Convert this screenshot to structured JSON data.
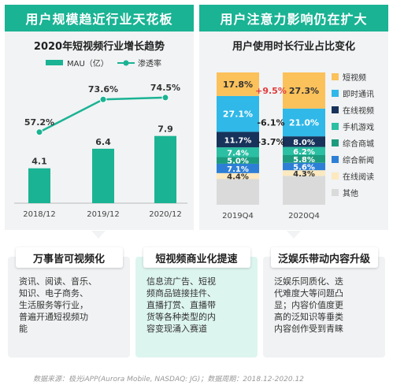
{
  "left_panel": {
    "banner": "用户规模趋近行业天花板"
  },
  "right_panel": {
    "banner": "用户注意力影响仍在扩大"
  },
  "chart_data": [
    {
      "type": "bar",
      "title": "2020年短视频行业增长趋势",
      "legend": [
        "MAU（亿）",
        "渗透率"
      ],
      "categories": [
        "2018/12",
        "2019/12",
        "2020/12"
      ],
      "series": [
        {
          "name": "MAU（亿）",
          "type": "bar",
          "values": [
            4.1,
            6.4,
            7.9
          ],
          "labels": [
            "4.1",
            "6.4",
            "7.9"
          ],
          "color": "#1ab394"
        },
        {
          "name": "渗透率",
          "type": "line",
          "values": [
            57.2,
            73.6,
            74.5
          ],
          "labels": [
            "57.2%",
            "73.6%",
            "74.5%"
          ],
          "color": "#1ab394"
        }
      ]
    },
    {
      "type": "bar",
      "stacked": true,
      "percent": true,
      "title": "用户使用时长行业占比变化",
      "categories": [
        "2019Q4",
        "2020Q4"
      ],
      "series": [
        {
          "name": "其他",
          "values": [
            null,
            null
          ],
          "labels": [
            "",
            ""
          ],
          "color": "#dadada"
        },
        {
          "name": "在线阅读",
          "values": [
            4.4,
            4.3
          ],
          "labels": [
            "4.4%",
            "4.3%"
          ],
          "color": "#fde9bf"
        },
        {
          "name": "综合新闻",
          "values": [
            7.1,
            5.6
          ],
          "labels": [
            "7.1%",
            "5.6%"
          ],
          "color": "#2d7fd6"
        },
        {
          "name": "综合商城",
          "values": [
            5.0,
            5.8
          ],
          "labels": [
            "5.0%",
            "5.8%"
          ],
          "color": "#1d9b7e"
        },
        {
          "name": "手机游戏",
          "values": [
            7.4,
            6.2
          ],
          "labels": [
            "7.4%",
            "6.2%"
          ],
          "color": "#2bbfa3"
        },
        {
          "name": "在线视频",
          "values": [
            11.7,
            8.0
          ],
          "labels": [
            "11.7%",
            "8.0%"
          ],
          "color": "#17335b"
        },
        {
          "name": "即时通讯",
          "values": [
            27.1,
            21.0
          ],
          "labels": [
            "27.1%",
            "21.0%"
          ],
          "color": "#2fb8e8"
        },
        {
          "name": "短视频",
          "values": [
            17.8,
            27.3
          ],
          "labels": [
            "17.8%",
            "27.3%"
          ],
          "color": "#fbc15b"
        }
      ],
      "changes": [
        {
          "series": "短视频",
          "label": "+9.5%",
          "color": "#e23b3b"
        },
        {
          "series": "即时通讯",
          "label": "-6.1%",
          "color": "#222222"
        },
        {
          "series": "在线视频",
          "label": "-3.7%",
          "color": "#222222"
        }
      ]
    }
  ],
  "cards": [
    {
      "title": "万事皆可视频化",
      "body": [
        "资讯、阅读、音乐、",
        "知识、电子商务、",
        "生活服务等行业，",
        "普遍开通短视频功",
        "能"
      ]
    },
    {
      "title": "短视频商业化提速",
      "body": [
        "信息流广告、短视",
        "频商品链接挂件、",
        "直播打赏、直播带",
        "货等各种类型的内",
        "容变现涌入赛道"
      ]
    },
    {
      "title": "泛娱乐带动内容升级",
      "body": [
        "泛娱乐同质化、迭",
        "代难度大等问题凸",
        "显；内容价值度更",
        "高的泛知识等垂类",
        "内容创作受到青睐"
      ]
    }
  ],
  "footer": "数据来源：极光iAPP(Aurora Mobile, NASDAQ: JG)；数据周期：2018.12-2020.12"
}
